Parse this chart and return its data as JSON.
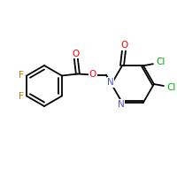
{
  "bg_color": "#ffffff",
  "bond_color": "#000000",
  "atom_colors": {
    "F": "#cc7700",
    "O": "#ff0000",
    "N": "#5555bb",
    "Cl": "#00aa00"
  },
  "figsize": [
    2.0,
    2.0
  ],
  "dpi": 100
}
